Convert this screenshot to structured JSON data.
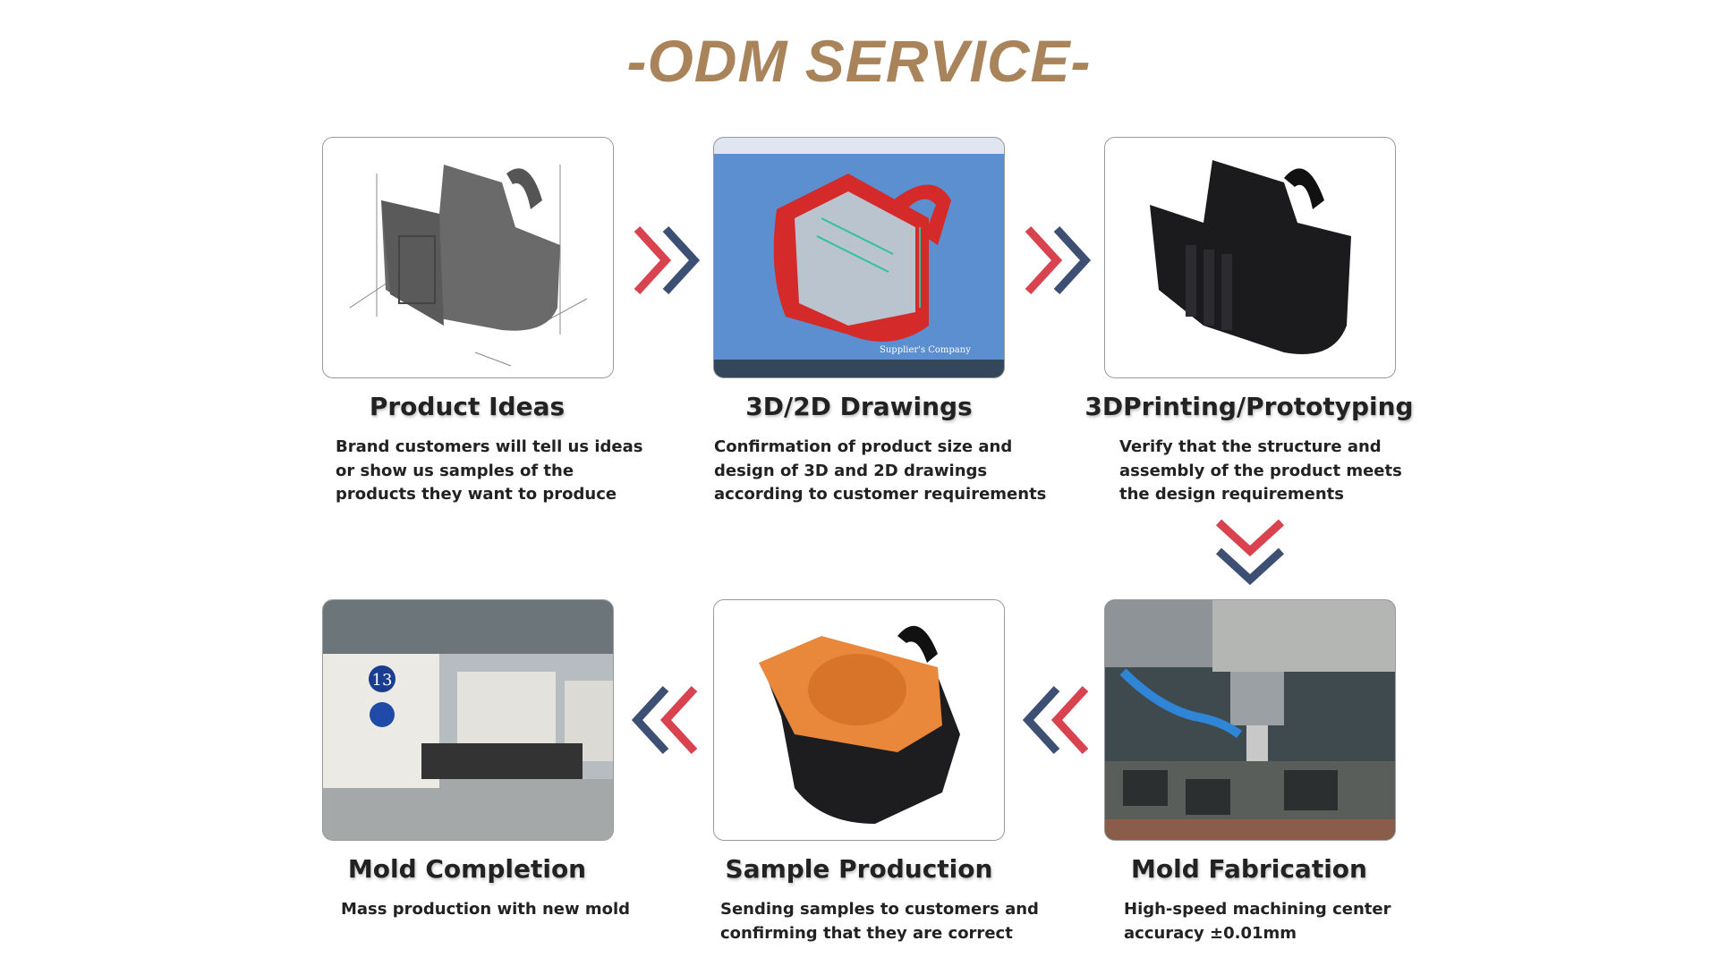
{
  "title": "-ODM SERVICE-",
  "colors": {
    "title": "#a9835a",
    "arrow_red": "#d9434f",
    "arrow_blue": "#3d4f73"
  },
  "steps": [
    {
      "title": "Product Ideas",
      "lines": [
        "Brand customers will tell us ideas",
        "or show us samples of the",
        "products they want to produce"
      ],
      "image": "cad-wireframe-holder"
    },
    {
      "title": "3D/2D Drawings",
      "lines": [
        "Confirmation of product size and",
        "design of 3D and 2D drawings",
        "according to customer requirements"
      ],
      "image": "cad-screen",
      "watermark": "Supplier's Company"
    },
    {
      "title": "3DPrinting/Prototyping",
      "lines": [
        "Verify that the structure and",
        "assembly of the product meets",
        "the design requirements"
      ],
      "image": "black-prototype"
    },
    {
      "title": "Mold Fabrication",
      "lines": [
        "High-speed machining center",
        "accuracy ±0.01mm"
      ],
      "image": "cnc-machine"
    },
    {
      "title": "Sample Production",
      "lines": [
        "Sending samples to customers and",
        "confirming that they are correct"
      ],
      "image": "orange-sample"
    },
    {
      "title": "Mold Completion",
      "lines": [
        "Mass production with new mold"
      ],
      "image": "factory-floor",
      "machine_number": "13"
    }
  ]
}
